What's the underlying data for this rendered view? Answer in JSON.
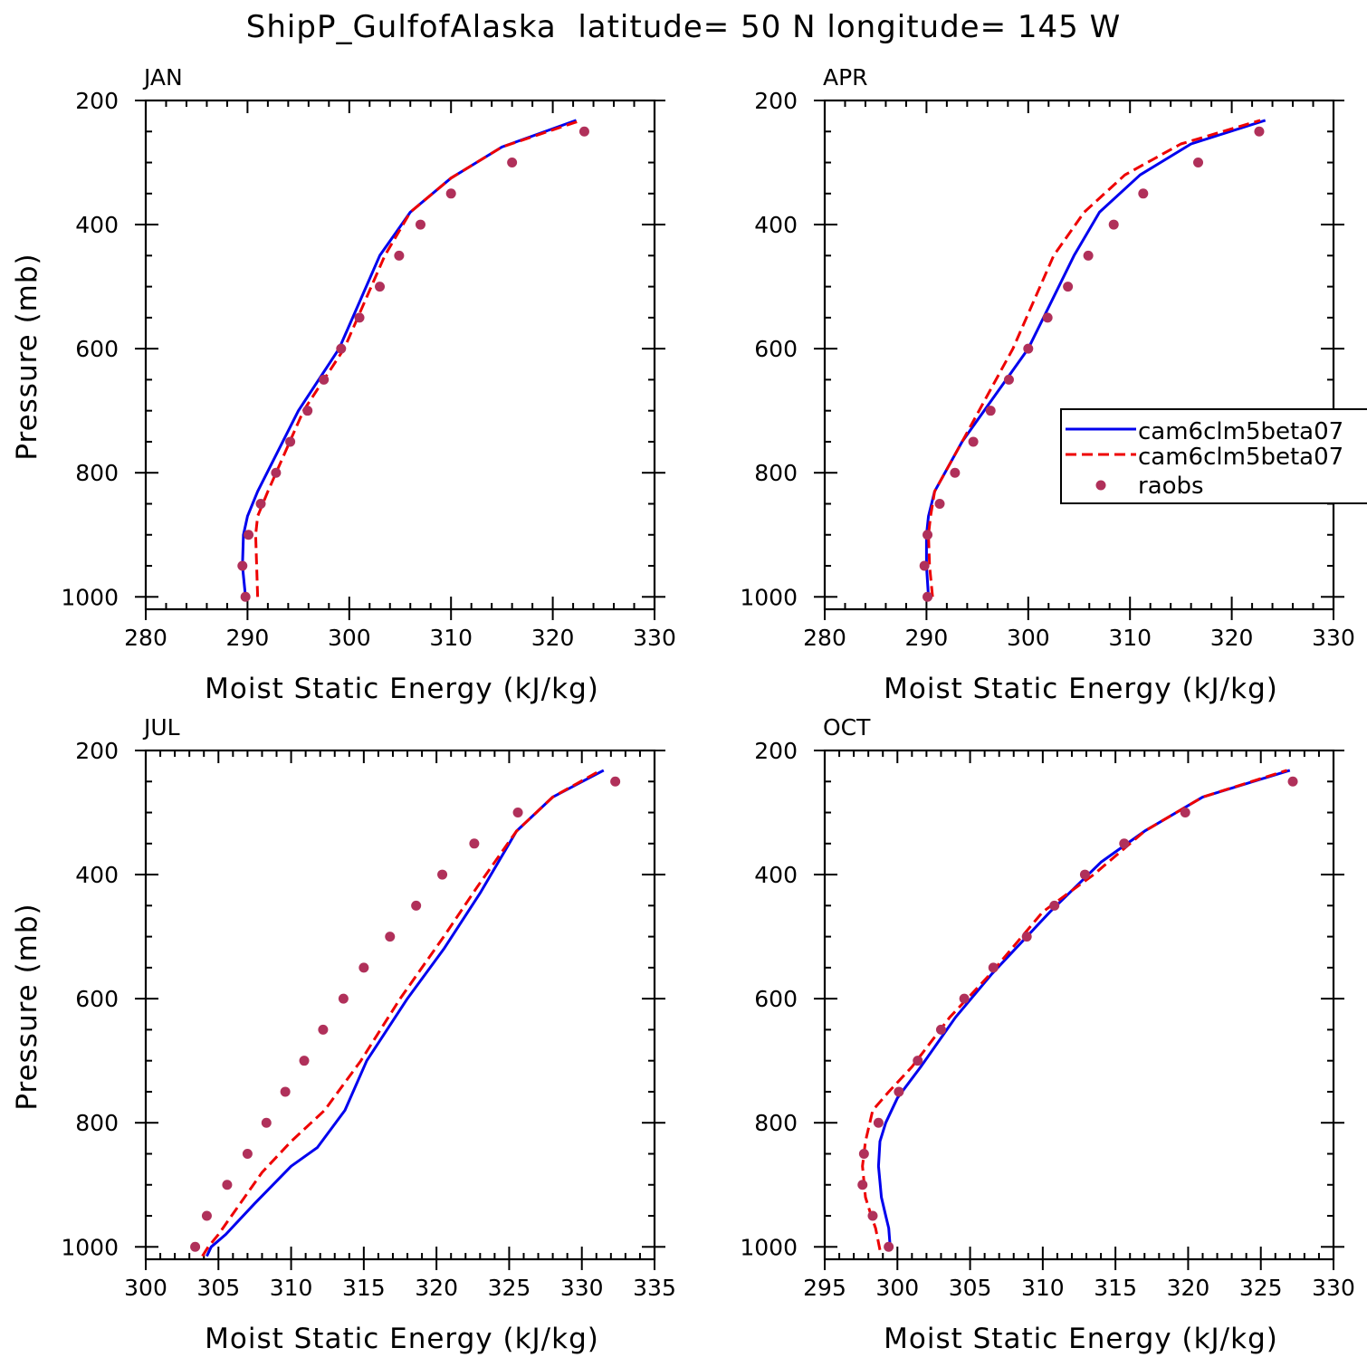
{
  "figure_title": "ShipP_GulfofAlaska  latitude= 50 N longitude= 145 W",
  "legend": {
    "entries": [
      "cam6clm5beta07",
      "cam6clm5beta07",
      "raobs"
    ],
    "visible_text": [
      "cam6clm5beta07",
      "cam6clm5beta07",
      "raobs"
    ]
  },
  "colors": {
    "model_a": "#0000ee",
    "model_b": "#ee0000",
    "raobs": "#b0305a"
  },
  "chart_data": [
    {
      "type": "line",
      "title": "JAN",
      "xlabel": "Moist Static Energy (kJ/kg)",
      "ylabel": "Pressure (mb)",
      "xlim": [
        280,
        330
      ],
      "ylim": [
        1000,
        200
      ],
      "xticks": [
        280,
        290,
        300,
        310,
        320,
        330
      ],
      "yticks": [
        200,
        400,
        600,
        800,
        1000
      ],
      "series": [
        {
          "name": "cam6clm5beta07",
          "style": "solid",
          "color": "#0000ee",
          "x": [
            289.8,
            289.5,
            289.6,
            290.0,
            291.0,
            295.0,
            299.0,
            303.0,
            306.0,
            310.0,
            315.0,
            322.3
          ],
          "y": [
            1000,
            950,
            900,
            870,
            830,
            700,
            600,
            450,
            380,
            325,
            275,
            232
          ]
        },
        {
          "name": "cam6clm5beta07",
          "style": "dashed",
          "color": "#ee0000",
          "x": [
            291.0,
            290.9,
            290.8,
            291.0,
            292.0,
            295.5,
            299.5,
            303.5,
            306.0,
            310.0,
            315.0,
            322.8
          ],
          "y": [
            1000,
            950,
            900,
            870,
            830,
            700,
            600,
            450,
            380,
            325,
            275,
            232
          ]
        },
        {
          "name": "raobs",
          "style": "markers",
          "color": "#b0305a",
          "x": [
            289.8,
            289.5,
            290.1,
            291.3,
            292.8,
            294.2,
            295.9,
            297.5,
            299.2,
            301.0,
            303.0,
            304.9,
            307.0,
            310.0,
            316.0,
            323.1
          ],
          "y": [
            1000,
            950,
            900,
            850,
            800,
            750,
            700,
            650,
            600,
            550,
            500,
            450,
            400,
            350,
            300,
            250
          ]
        }
      ]
    },
    {
      "type": "line",
      "title": "APR",
      "xlabel": "Moist Static Energy (kJ/kg)",
      "ylabel": "",
      "xlim": [
        280,
        330
      ],
      "ylim": [
        1000,
        200
      ],
      "xticks": [
        280,
        290,
        300,
        310,
        320,
        330
      ],
      "yticks": [
        200,
        400,
        600,
        800,
        1000
      ],
      "series": [
        {
          "name": "cam6clm5beta07",
          "style": "solid",
          "color": "#0000ee",
          "x": [
            290.2,
            290.0,
            290.0,
            290.2,
            290.8,
            293.5,
            300.0,
            304.5,
            307.0,
            311.0,
            316.0,
            323.3
          ],
          "y": [
            1000,
            950,
            900,
            870,
            830,
            750,
            600,
            450,
            380,
            320,
            270,
            232
          ]
        },
        {
          "name": "cam6clm5beta07",
          "style": "dashed",
          "color": "#ee0000",
          "x": [
            290.6,
            290.3,
            290.2,
            290.4,
            290.8,
            293.5,
            298.5,
            302.5,
            305.5,
            309.5,
            315.0,
            322.8
          ],
          "y": [
            1000,
            950,
            900,
            870,
            830,
            750,
            600,
            450,
            380,
            320,
            270,
            232
          ]
        },
        {
          "name": "raobs",
          "style": "markers",
          "color": "#b0305a",
          "x": [
            290.1,
            289.8,
            290.1,
            291.3,
            292.8,
            294.6,
            296.3,
            298.1,
            300.0,
            301.9,
            303.9,
            305.9,
            308.4,
            311.3,
            316.7,
            322.7
          ],
          "y": [
            1000,
            950,
            900,
            850,
            800,
            750,
            700,
            650,
            600,
            550,
            500,
            450,
            400,
            350,
            300,
            250
          ]
        }
      ]
    },
    {
      "type": "line",
      "title": "JUL",
      "xlabel": "Moist Static Energy (kJ/kg)",
      "ylabel": "Pressure (mb)",
      "xlim": [
        300,
        335
      ],
      "ylim": [
        1000,
        200
      ],
      "xticks": [
        300,
        305,
        310,
        315,
        320,
        325,
        330,
        335
      ],
      "yticks": [
        200,
        400,
        600,
        800,
        1000
      ],
      "series": [
        {
          "name": "cam6clm5beta07",
          "style": "solid",
          "color": "#0000ee",
          "x": [
            304.2,
            304.5,
            305.5,
            307.5,
            310.0,
            311.8,
            313.7,
            315.2,
            318.0,
            320.5,
            323.0,
            325.5,
            328.0,
            331.5
          ],
          "y": [
            1015,
            1000,
            980,
            930,
            870,
            840,
            780,
            700,
            600,
            520,
            430,
            330,
            275,
            232
          ]
        },
        {
          "name": "cam6clm5beta07",
          "style": "dashed",
          "color": "#ee0000",
          "x": [
            303.9,
            304.3,
            305.0,
            306.5,
            308.0,
            310.0,
            312.3,
            314.8,
            317.5,
            320.5,
            322.8,
            325.5,
            328.0,
            331.3
          ],
          "y": [
            1015,
            1000,
            980,
            930,
            880,
            830,
            780,
            700,
            600,
            500,
            420,
            330,
            275,
            232
          ]
        },
        {
          "name": "raobs",
          "style": "markers",
          "color": "#b0305a",
          "x": [
            303.4,
            304.2,
            305.6,
            307.0,
            308.3,
            309.6,
            310.9,
            312.2,
            313.6,
            315.0,
            316.8,
            318.6,
            320.4,
            322.6,
            325.6,
            332.3
          ],
          "y": [
            1000,
            950,
            900,
            850,
            800,
            750,
            700,
            650,
            600,
            550,
            500,
            450,
            400,
            350,
            300,
            250
          ]
        }
      ]
    },
    {
      "type": "line",
      "title": "OCT",
      "xlabel": "Moist Static Energy (kJ/kg)",
      "ylabel": "",
      "xlim": [
        295,
        330
      ],
      "ylim": [
        1000,
        200
      ],
      "xticks": [
        295,
        300,
        305,
        310,
        315,
        320,
        325,
        330
      ],
      "yticks": [
        200,
        400,
        600,
        800,
        1000
      ],
      "series": [
        {
          "name": "cam6clm5beta07",
          "style": "solid",
          "color": "#0000ee",
          "x": [
            299.5,
            299.4,
            299.2,
            298.9,
            298.7,
            298.8,
            299.2,
            300.0,
            301.6,
            304.0,
            306.5,
            310.5,
            314.0,
            317.0,
            321.0,
            327.0
          ],
          "y": [
            1000,
            970,
            950,
            920,
            870,
            830,
            800,
            760,
            710,
            630,
            560,
            460,
            380,
            330,
            275,
            232
          ]
        },
        {
          "name": "cam6clm5beta07",
          "style": "dashed",
          "color": "#ee0000",
          "x": [
            298.8,
            298.5,
            298.2,
            297.8,
            297.6,
            297.8,
            298.3,
            299.4,
            301.0,
            303.6,
            306.4,
            310.0,
            313.5,
            317.0,
            321.0,
            326.8
          ],
          "y": [
            1005,
            970,
            950,
            920,
            870,
            830,
            780,
            750,
            710,
            630,
            560,
            460,
            400,
            330,
            275,
            232
          ]
        },
        {
          "name": "raobs",
          "style": "markers",
          "color": "#b0305a",
          "x": [
            299.4,
            298.3,
            297.6,
            297.7,
            298.7,
            300.1,
            301.4,
            303.0,
            304.6,
            306.6,
            308.9,
            310.8,
            312.9,
            315.6,
            319.8,
            327.2
          ],
          "y": [
            1000,
            950,
            900,
            850,
            800,
            750,
            700,
            650,
            600,
            550,
            500,
            450,
            400,
            350,
            300,
            250
          ]
        }
      ]
    }
  ]
}
